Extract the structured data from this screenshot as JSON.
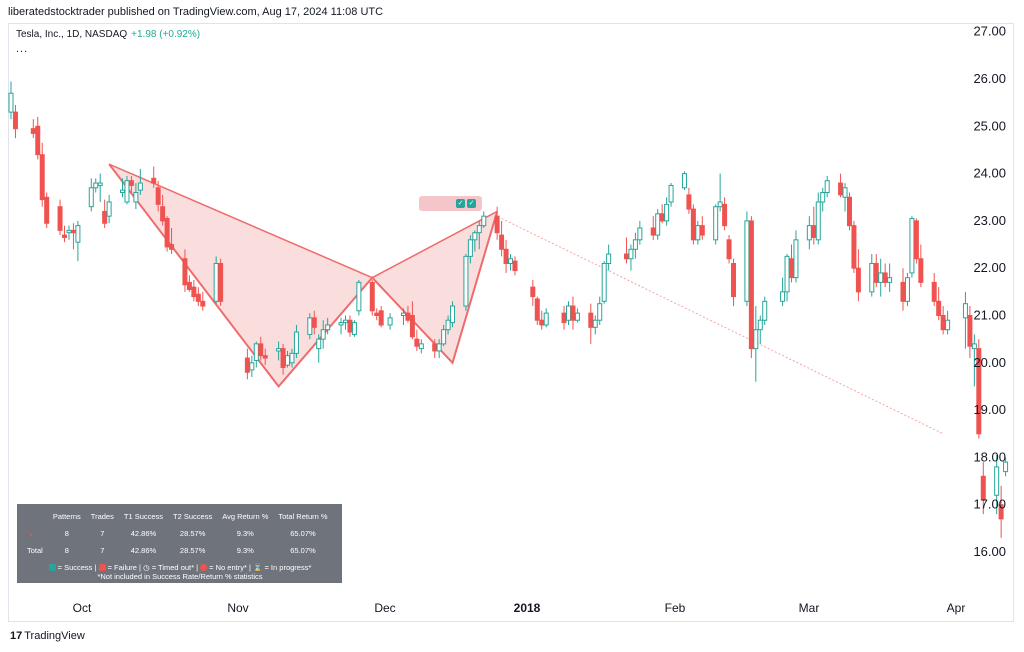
{
  "header": {
    "text": "liberatedstocktrader published on TradingView.com, Aug 17, 2024 11:08 UTC"
  },
  "legend": {
    "symbol": "Tesla, Inc., 1D, NASDAQ",
    "change": "+1.98 (+0.92%)",
    "more": "..."
  },
  "footer": {
    "brand": "TradingView",
    "logo": "17"
  },
  "colors": {
    "up": "#26a69a",
    "down": "#ef5350",
    "pattern_fill": "#f8d3d3",
    "pattern_line": "#ef6b6b",
    "target_line": "#f5a3a3",
    "stats_bg": "#6f747c"
  },
  "stats": {
    "headers": [
      "Patterns",
      "Trades",
      "T1 Success",
      "T2 Success",
      "Avg Return %",
      "Total Return %"
    ],
    "rows": [
      {
        "label": "",
        "values": [
          "8",
          "7",
          "42.86%",
          "28.57%",
          "9.3%",
          "65.07%"
        ]
      },
      {
        "label": "Total",
        "values": [
          "8",
          "7",
          "42.86%",
          "28.57%",
          "9.3%",
          "65.07%"
        ]
      }
    ],
    "legend_items": [
      "= Success |",
      "= Failure |",
      "= Timed out* |",
      "= No entry* |",
      "= In progress*"
    ],
    "note": "*Not included in Success Rate/Return % statistics"
  },
  "chart_data": {
    "type": "candlestick",
    "y_ticks": [
      "27.00",
      "26.00",
      "25.00",
      "24.00",
      "23.00",
      "22.00",
      "21.00",
      "20.00",
      "19.00",
      "18.00",
      "17.00",
      "16.00"
    ],
    "ylim": [
      15.2,
      27.4
    ],
    "x_ticks": [
      "Oct",
      "Nov",
      "Dec",
      "2018",
      "Feb",
      "Mar",
      "Apr"
    ],
    "pattern_points": [
      {
        "date": "2017-09-22",
        "price": 24.2
      },
      {
        "date": "2017-10-30",
        "price": 19.5
      },
      {
        "date": "2017-11-20",
        "price": 21.8
      },
      {
        "date": "2017-12-08",
        "price": 20.0
      },
      {
        "date": "2017-12-18",
        "price": 23.2
      }
    ],
    "target_line": [
      {
        "date": "2017-12-19",
        "price": 23.05
      },
      {
        "date": "2018-03-28",
        "price": 18.5
      }
    ],
    "candles": [
      [
        "2017-08-31",
        25.3,
        25.95,
        25.15,
        25.7
      ],
      [
        "2017-09-01",
        25.3,
        25.45,
        24.75,
        24.95
      ],
      [
        "2017-09-05",
        24.95,
        25.15,
        24.75,
        24.85
      ],
      [
        "2017-09-06",
        25.0,
        25.2,
        24.3,
        24.4
      ],
      [
        "2017-09-07",
        24.4,
        24.65,
        23.3,
        23.45
      ],
      [
        "2017-09-08",
        23.5,
        23.6,
        22.85,
        22.95
      ],
      [
        "2017-09-11",
        23.3,
        23.45,
        22.7,
        22.8
      ],
      [
        "2017-09-12",
        22.7,
        22.9,
        22.55,
        22.65
      ],
      [
        "2017-09-13",
        22.75,
        22.9,
        22.6,
        22.8
      ],
      [
        "2017-09-14",
        22.8,
        22.95,
        22.4,
        22.75
      ],
      [
        "2017-09-15",
        22.55,
        23.0,
        22.15,
        22.9
      ],
      [
        "2017-09-18",
        23.3,
        23.9,
        23.2,
        23.7
      ],
      [
        "2017-09-19",
        23.7,
        23.9,
        23.6,
        23.8
      ],
      [
        "2017-09-20",
        23.75,
        24.0,
        23.4,
        23.8
      ],
      [
        "2017-09-21",
        23.2,
        23.45,
        22.85,
        22.95
      ],
      [
        "2017-09-22",
        23.1,
        23.55,
        22.95,
        23.4
      ],
      [
        "2017-09-25",
        23.6,
        23.9,
        23.5,
        23.65
      ],
      [
        "2017-09-26",
        23.4,
        23.95,
        23.35,
        23.85
      ],
      [
        "2017-09-27",
        23.85,
        23.95,
        23.6,
        23.75
      ],
      [
        "2017-09-28",
        23.4,
        23.8,
        23.25,
        23.6
      ],
      [
        "2017-09-29",
        23.65,
        24.1,
        23.55,
        23.8
      ],
      [
        "2017-10-02",
        23.9,
        24.15,
        23.7,
        23.8
      ],
      [
        "2017-10-03",
        23.7,
        23.85,
        23.2,
        23.35
      ],
      [
        "2017-10-04",
        23.3,
        23.55,
        22.9,
        23.0
      ],
      [
        "2017-10-05",
        23.05,
        23.1,
        22.35,
        22.45
      ],
      [
        "2017-10-06",
        22.5,
        22.85,
        22.3,
        22.4
      ],
      [
        "2017-10-09",
        22.2,
        22.4,
        21.5,
        21.65
      ],
      [
        "2017-10-10",
        21.7,
        21.85,
        21.5,
        21.55
      ],
      [
        "2017-10-11",
        21.6,
        21.75,
        21.3,
        21.4
      ],
      [
        "2017-10-12",
        21.45,
        21.6,
        21.2,
        21.3
      ],
      [
        "2017-10-13",
        21.3,
        21.5,
        21.1,
        21.2
      ],
      [
        "2017-10-16",
        21.3,
        22.25,
        21.25,
        22.1
      ],
      [
        "2017-10-17",
        22.1,
        22.2,
        21.2,
        21.3
      ],
      [
        "2017-10-23",
        20.1,
        20.3,
        19.65,
        19.8
      ],
      [
        "2017-10-24",
        19.85,
        20.15,
        19.7,
        20.0
      ],
      [
        "2017-10-25",
        20.05,
        20.45,
        19.9,
        20.4
      ],
      [
        "2017-10-26",
        20.4,
        20.55,
        20.05,
        20.15
      ],
      [
        "2017-10-27",
        20.15,
        20.3,
        19.95,
        20.1
      ],
      [
        "2017-10-30",
        20.25,
        20.45,
        20.05,
        20.3
      ],
      [
        "2017-10-31",
        20.3,
        20.4,
        19.75,
        19.9
      ],
      [
        "2017-11-01",
        19.95,
        20.25,
        19.9,
        20.15
      ],
      [
        "2017-11-02",
        20.0,
        20.3,
        19.9,
        20.2
      ],
      [
        "2017-11-03",
        20.2,
        20.8,
        20.1,
        20.65
      ],
      [
        "2017-11-06",
        20.6,
        21.05,
        20.5,
        20.95
      ],
      [
        "2017-11-07",
        20.95,
        21.1,
        20.6,
        20.75
      ],
      [
        "2017-11-08",
        20.3,
        20.6,
        20.0,
        20.5
      ],
      [
        "2017-11-09",
        20.5,
        20.9,
        20.3,
        20.7
      ],
      [
        "2017-11-10",
        20.7,
        20.95,
        20.6,
        20.8
      ],
      [
        "2017-11-13",
        20.8,
        20.95,
        20.6,
        20.85
      ],
      [
        "2017-11-14",
        20.85,
        21.0,
        20.7,
        20.9
      ],
      [
        "2017-11-15",
        20.9,
        21.0,
        20.55,
        20.65
      ],
      [
        "2017-11-16",
        20.6,
        20.9,
        20.55,
        20.85
      ],
      [
        "2017-11-17",
        21.1,
        21.75,
        21.0,
        21.7
      ],
      [
        "2017-11-20",
        21.7,
        21.75,
        21.0,
        21.1
      ],
      [
        "2017-11-21",
        21.05,
        21.15,
        20.9,
        21.0
      ],
      [
        "2017-11-22",
        21.1,
        21.2,
        20.75,
        20.8
      ],
      [
        "2017-11-24",
        20.8,
        21.05,
        20.7,
        20.95
      ],
      [
        "2017-11-27",
        21.0,
        21.15,
        20.8,
        21.05
      ],
      [
        "2017-11-28",
        21.05,
        21.2,
        20.85,
        20.9
      ],
      [
        "2017-11-29",
        21.0,
        21.3,
        20.5,
        20.55
      ],
      [
        "2017-11-30",
        20.5,
        20.7,
        20.25,
        20.35
      ],
      [
        "2017-12-01",
        20.3,
        20.5,
        20.2,
        20.4
      ],
      [
        "2017-12-04",
        20.4,
        20.5,
        20.1,
        20.25
      ],
      [
        "2017-12-05",
        20.25,
        20.5,
        20.1,
        20.4
      ],
      [
        "2017-12-06",
        20.4,
        20.8,
        20.35,
        20.7
      ],
      [
        "2017-12-07",
        20.7,
        21.0,
        20.6,
        20.9
      ],
      [
        "2017-12-08",
        20.85,
        21.3,
        20.75,
        21.2
      ],
      [
        "2017-12-11",
        21.2,
        22.3,
        21.1,
        22.25
      ],
      [
        "2017-12-12",
        22.25,
        22.7,
        22.1,
        22.6
      ],
      [
        "2017-12-13",
        22.6,
        22.8,
        22.35,
        22.75
      ],
      [
        "2017-12-14",
        22.75,
        23.0,
        22.4,
        22.9
      ],
      [
        "2017-12-15",
        22.9,
        23.2,
        22.85,
        23.1
      ],
      [
        "2017-12-18",
        23.1,
        23.3,
        22.6,
        22.75
      ],
      [
        "2017-12-19",
        22.7,
        23.0,
        22.25,
        22.4
      ],
      [
        "2017-12-20",
        22.4,
        22.6,
        21.9,
        22.1
      ],
      [
        "2017-12-21",
        22.1,
        22.3,
        21.95,
        22.2
      ],
      [
        "2017-12-22",
        22.15,
        22.25,
        21.85,
        21.95
      ],
      [
        "2017-12-26",
        21.6,
        21.75,
        21.2,
        21.4
      ],
      [
        "2017-12-27",
        21.35,
        21.4,
        20.8,
        20.9
      ],
      [
        "2017-12-28",
        20.9,
        21.1,
        20.7,
        20.8
      ],
      [
        "2017-12-29",
        20.8,
        21.15,
        20.75,
        21.05
      ],
      [
        "2018-01-02",
        21.05,
        21.2,
        20.7,
        20.85
      ],
      [
        "2018-01-03",
        20.9,
        21.3,
        20.8,
        21.2
      ],
      [
        "2018-01-04",
        21.2,
        21.4,
        20.7,
        20.9
      ],
      [
        "2018-01-05",
        20.9,
        21.15,
        20.85,
        21.05
      ],
      [
        "2018-01-08",
        21.05,
        21.25,
        20.4,
        20.75
      ],
      [
        "2018-01-09",
        20.75,
        21.0,
        20.6,
        20.9
      ],
      [
        "2018-01-10",
        20.9,
        21.4,
        20.8,
        21.25
      ],
      [
        "2018-01-11",
        21.3,
        22.15,
        21.25,
        22.1
      ],
      [
        "2018-01-12",
        22.1,
        22.5,
        21.95,
        22.3
      ],
      [
        "2018-01-16",
        22.3,
        22.65,
        22.1,
        22.2
      ],
      [
        "2018-01-17",
        22.2,
        22.5,
        21.95,
        22.4
      ],
      [
        "2018-01-18",
        22.4,
        22.75,
        22.2,
        22.6
      ],
      [
        "2018-01-19",
        22.6,
        23.0,
        22.5,
        22.85
      ],
      [
        "2018-01-22",
        22.85,
        23.1,
        22.6,
        22.7
      ],
      [
        "2018-01-23",
        22.7,
        23.25,
        22.6,
        23.15
      ],
      [
        "2018-01-24",
        23.15,
        23.35,
        22.95,
        23.0
      ],
      [
        "2018-01-25",
        23.0,
        23.5,
        22.9,
        23.35
      ],
      [
        "2018-01-26",
        23.4,
        23.8,
        23.3,
        23.75
      ],
      [
        "2018-01-29",
        23.7,
        24.05,
        23.65,
        24.0
      ],
      [
        "2018-01-30",
        23.55,
        23.7,
        23.15,
        23.25
      ],
      [
        "2018-01-31",
        23.25,
        23.35,
        22.5,
        22.6
      ],
      [
        "2018-02-01",
        22.6,
        23.0,
        22.5,
        22.9
      ],
      [
        "2018-02-02",
        22.9,
        23.1,
        22.6,
        22.7
      ],
      [
        "2018-02-05",
        22.6,
        23.35,
        22.5,
        23.3
      ],
      [
        "2018-02-06",
        23.3,
        24.0,
        23.2,
        23.4
      ],
      [
        "2018-02-07",
        23.35,
        23.5,
        22.8,
        22.9
      ],
      [
        "2018-02-08",
        22.6,
        22.7,
        22.1,
        22.2
      ],
      [
        "2018-02-09",
        22.1,
        22.2,
        21.2,
        21.4
      ],
      [
        "2018-02-12",
        21.3,
        23.2,
        21.2,
        23.0
      ],
      [
        "2018-02-13",
        23.0,
        23.1,
        20.1,
        20.3
      ],
      [
        "2018-02-14",
        20.3,
        21.2,
        19.6,
        20.7
      ],
      [
        "2018-02-15",
        20.7,
        21.0,
        20.4,
        20.9
      ],
      [
        "2018-02-16",
        20.9,
        21.4,
        20.8,
        21.3
      ],
      [
        "2018-02-20",
        21.3,
        21.8,
        21.2,
        21.5
      ],
      [
        "2018-02-21",
        21.5,
        22.3,
        21.3,
        22.25
      ],
      [
        "2018-02-22",
        22.2,
        22.5,
        21.7,
        21.8
      ],
      [
        "2018-02-23",
        21.8,
        22.8,
        21.7,
        22.6
      ],
      [
        "2018-02-26",
        22.6,
        23.1,
        22.4,
        22.9
      ],
      [
        "2018-02-27",
        22.9,
        23.3,
        22.5,
        22.65
      ],
      [
        "2018-02-28",
        22.6,
        23.6,
        22.5,
        23.4
      ],
      [
        "2018-03-01",
        23.4,
        23.7,
        23.2,
        23.6
      ],
      [
        "2018-03-02",
        23.6,
        23.95,
        23.5,
        23.85
      ],
      [
        "2018-03-05",
        23.8,
        24.0,
        23.5,
        23.55
      ],
      [
        "2018-03-06",
        23.5,
        23.8,
        23.2,
        23.7
      ],
      [
        "2018-03-07",
        23.5,
        23.6,
        22.8,
        22.9
      ],
      [
        "2018-03-08",
        22.9,
        23.0,
        21.9,
        22.0
      ],
      [
        "2018-03-09",
        22.0,
        22.4,
        21.3,
        21.5
      ],
      [
        "2018-03-12",
        21.5,
        22.3,
        21.4,
        22.1
      ],
      [
        "2018-03-13",
        22.1,
        22.3,
        21.6,
        21.7
      ],
      [
        "2018-03-14",
        21.7,
        22.2,
        21.4,
        21.9
      ],
      [
        "2018-03-15",
        21.9,
        22.1,
        21.6,
        21.7
      ],
      [
        "2018-03-16",
        21.7,
        22.1,
        21.5,
        21.8
      ],
      [
        "2018-03-19",
        21.7,
        22.0,
        21.1,
        21.3
      ],
      [
        "2018-03-20",
        21.3,
        21.9,
        21.2,
        21.8
      ],
      [
        "2018-03-21",
        21.9,
        23.1,
        21.8,
        23.05
      ],
      [
        "2018-03-22",
        23.0,
        23.05,
        22.1,
        22.2
      ],
      [
        "2018-03-23",
        22.2,
        22.5,
        21.6,
        21.7
      ],
      [
        "2018-03-26",
        21.7,
        21.9,
        21.2,
        21.3
      ],
      [
        "2018-03-27",
        21.3,
        21.6,
        20.9,
        21.0
      ],
      [
        "2018-03-28",
        21.0,
        21.2,
        20.6,
        20.7
      ],
      [
        "2018-03-29",
        20.7,
        21.1,
        20.6,
        20.9
      ],
      [
        "2018-04-02",
        20.95,
        21.5,
        20.3,
        21.25
      ],
      [
        "2018-04-03",
        21.0,
        21.2,
        20.1,
        20.35
      ],
      [
        "2018-04-04",
        20.3,
        20.6,
        19.5,
        20.4
      ],
      [
        "2018-04-05",
        20.3,
        20.5,
        18.4,
        18.5
      ],
      [
        "2018-04-06",
        17.6,
        17.9,
        16.8,
        17.1
      ],
      [
        "2018-04-09",
        17.2,
        18.05,
        16.8,
        17.8
      ],
      [
        "2018-04-10",
        17.0,
        17.4,
        16.3,
        16.7
      ],
      [
        "2018-04-11",
        17.7,
        18.0,
        17.6,
        17.9
      ]
    ]
  }
}
